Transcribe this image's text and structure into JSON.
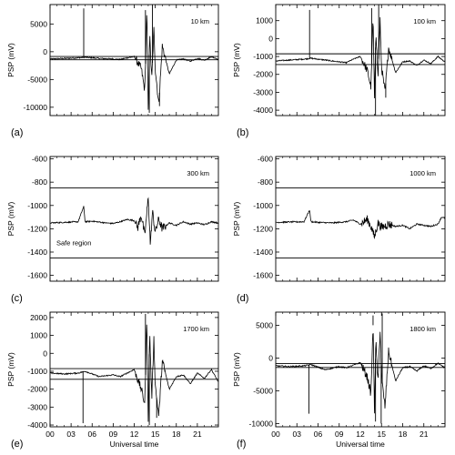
{
  "chart_data": [
    {
      "panel_label": "(a)",
      "annotation": "10 km",
      "type": "line",
      "ylabel": "PSP (mV)",
      "xlabel": "",
      "xlim": [
        0,
        24
      ],
      "ylim": [
        -11500,
        8500
      ],
      "yticks": [
        5000,
        0,
        -5000,
        -10000
      ],
      "yticklabels": [
        "5000",
        "0",
        "-5000",
        "-10000"
      ],
      "xticks": [
        0,
        3,
        6,
        9,
        12,
        15,
        18,
        21
      ],
      "xticklabels": [
        "",
        "",
        "",
        "",
        "",
        "",
        "",
        ""
      ],
      "thresholds": [
        -850,
        -1450
      ],
      "series": [
        {
          "x": [
            0,
            2,
            4,
            5,
            7,
            9,
            10,
            11,
            12,
            13,
            13.5,
            13.8,
            14,
            14.2,
            14.5,
            14.8,
            15,
            15.5,
            16,
            17,
            18,
            19,
            20,
            21,
            22,
            23,
            24
          ],
          "y": [
            -1300,
            -1200,
            -1100,
            -1000,
            -1200,
            -1300,
            -1400,
            -1100,
            -900,
            -3000,
            -7000,
            7500,
            -11000,
            3000,
            -5000,
            4000,
            -3000,
            -9500,
            1000,
            -4000,
            -1500,
            -1300,
            -1700,
            -1200,
            -1500,
            -900,
            -1400
          ]
        }
      ],
      "spikes": [
        {
          "x": 4.8,
          "y": 7800
        },
        {
          "x": 13.6,
          "y": 7500
        },
        {
          "x": 14.15,
          "y": -11000
        },
        {
          "x": 14.6,
          "y": 8500
        },
        {
          "x": 15.6,
          "y": -9800
        }
      ]
    },
    {
      "panel_label": "(b)",
      "annotation": "100 km",
      "type": "line",
      "ylabel": "PSP (mV)",
      "xlabel": "",
      "xlim": [
        0,
        24
      ],
      "ylim": [
        -4300,
        1900
      ],
      "yticks": [
        1000,
        0,
        -1000,
        -2000,
        -3000,
        -4000
      ],
      "yticklabels": [
        "1000",
        "0",
        "-1000",
        "-2000",
        "-3000",
        "-4000"
      ],
      "xticks": [
        0,
        3,
        6,
        9,
        12,
        15,
        18,
        21
      ],
      "xticklabels": [
        "",
        "",
        "",
        "",
        "",
        "",
        "",
        ""
      ],
      "thresholds": [
        -850,
        -1450
      ],
      "series": [
        {
          "x": [
            0,
            2,
            4,
            5,
            7,
            9,
            10,
            11,
            12,
            13,
            13.5,
            13.8,
            14,
            14.2,
            14.5,
            14.8,
            15,
            15.5,
            16,
            17,
            18,
            19,
            20,
            21,
            22,
            23,
            24
          ],
          "y": [
            -1250,
            -1200,
            -1150,
            -1100,
            -1200,
            -1300,
            -1350,
            -1150,
            -1000,
            -1800,
            -2700,
            1200,
            -3500,
            500,
            -2200,
            1000,
            -1600,
            -3000,
            -500,
            -1900,
            -1300,
            -1250,
            -1500,
            -1200,
            -1400,
            -1000,
            -1300
          ]
        }
      ],
      "spikes": [
        {
          "x": 4.8,
          "y": 1600
        },
        {
          "x": 13.6,
          "y": 1700
        },
        {
          "x": 14.15,
          "y": -4300
        },
        {
          "x": 14.6,
          "y": 1900
        },
        {
          "x": 15.6,
          "y": -3300
        }
      ]
    },
    {
      "panel_label": "(c)",
      "annotation": "300 km",
      "type": "line",
      "ylabel": "PSP (mV)",
      "xlabel": "",
      "xlim": [
        0,
        24
      ],
      "ylim": [
        -1650,
        -580
      ],
      "yticks": [
        -600,
        -800,
        -1000,
        -1200,
        -1400,
        -1600
      ],
      "yticklabels": [
        "-600",
        "-800",
        "-1000",
        "-1200",
        "-1400",
        "-1600"
      ],
      "xticks": [
        0,
        3,
        6,
        9,
        12,
        15,
        18,
        21
      ],
      "xticklabels": [
        "",
        "",
        "",
        "",
        "",
        "",
        "",
        ""
      ],
      "thresholds": [
        -850,
        -1450
      ],
      "region_label": "Safe region",
      "series": [
        {
          "x": [
            0,
            2,
            4,
            4.8,
            5,
            6,
            8,
            9,
            10,
            11,
            12,
            12.5,
            13,
            13.5,
            14,
            14.3,
            14.6,
            15,
            15.5,
            16,
            17,
            18,
            19,
            20,
            21,
            22,
            23,
            24
          ],
          "y": [
            -1150,
            -1145,
            -1140,
            -1010,
            -1140,
            -1135,
            -1150,
            -1155,
            -1140,
            -1120,
            -1130,
            -1190,
            -1080,
            -1260,
            -930,
            -1340,
            -1050,
            -1230,
            -1120,
            -1200,
            -1150,
            -1170,
            -1140,
            -1160,
            -1150,
            -1165,
            -1140,
            -1150
          ]
        }
      ]
    },
    {
      "panel_label": "(d)",
      "annotation": "1000 km",
      "type": "line",
      "ylabel": "PSP (mV)",
      "xlabel": "",
      "xlim": [
        0,
        24
      ],
      "ylim": [
        -1650,
        -580
      ],
      "yticks": [
        -600,
        -800,
        -1000,
        -1200,
        -1400,
        -1600
      ],
      "yticklabels": [
        "-600",
        "-800",
        "-1000",
        "-1200",
        "-1400",
        "-1600"
      ],
      "xticks": [
        0,
        3,
        6,
        9,
        12,
        15,
        18,
        21
      ],
      "xticklabels": [
        "",
        "",
        "",
        "",
        "",
        "",
        "",
        ""
      ],
      "thresholds": [
        -850,
        -1450
      ],
      "series": [
        {
          "x": [
            0,
            2,
            4,
            4.8,
            5,
            6,
            8,
            10,
            11,
            12,
            13,
            13.5,
            14,
            14.5,
            15,
            16,
            17,
            18,
            19,
            20,
            21,
            22,
            23,
            23.5,
            24
          ],
          "y": [
            -1145,
            -1142,
            -1140,
            -1040,
            -1140,
            -1145,
            -1150,
            -1140,
            -1125,
            -1160,
            -1120,
            -1180,
            -1270,
            -1150,
            -1190,
            -1160,
            -1180,
            -1170,
            -1200,
            -1160,
            -1170,
            -1180,
            -1160,
            -1100,
            -1110
          ]
        }
      ]
    },
    {
      "panel_label": "(e)",
      "annotation": "1700 km",
      "type": "line",
      "ylabel": "PSP (mV)",
      "xlabel": "Universal time",
      "xlim": [
        0,
        24
      ],
      "ylim": [
        -4100,
        2300
      ],
      "yticks": [
        2000,
        1000,
        0,
        -1000,
        -2000,
        -3000,
        -4000
      ],
      "yticklabels": [
        "2000",
        "1000",
        "0",
        "-1000",
        "-2000",
        "-3000",
        "-4000"
      ],
      "xticks": [
        0,
        3,
        6,
        9,
        12,
        15,
        18,
        21
      ],
      "xticklabels": [
        "00",
        "03",
        "06",
        "09",
        "12",
        "15",
        "18",
        "21"
      ],
      "thresholds": [
        -850,
        -1450
      ],
      "series": [
        {
          "x": [
            0,
            2,
            4,
            5,
            7,
            9,
            10,
            11,
            12,
            13,
            13.5,
            13.8,
            14,
            14.2,
            14.5,
            14.8,
            15,
            15.5,
            16,
            17,
            18,
            19,
            20,
            21,
            22,
            23,
            24
          ],
          "y": [
            -1100,
            -1150,
            -1100,
            -1000,
            -1300,
            -1200,
            -1300,
            -1100,
            -900,
            -2000,
            -2800,
            2000,
            -3800,
            1200,
            -2500,
            800,
            -1800,
            -3500,
            -400,
            -2000,
            -1300,
            -1200,
            -1700,
            -1100,
            -1400,
            -900,
            -1600
          ]
        }
      ],
      "spikes": [
        {
          "x": 4.7,
          "y": -3900
        },
        {
          "x": 13.6,
          "y": 2200
        },
        {
          "x": 14.15,
          "y": -4000
        },
        {
          "x": 15.2,
          "y": -3600
        }
      ]
    },
    {
      "panel_label": "(f)",
      "annotation": "1800 km",
      "type": "line",
      "ylabel": "PSP (mV)",
      "xlabel": "Universal time",
      "xlim": [
        0,
        24
      ],
      "ylim": [
        -10500,
        7000
      ],
      "yticks": [
        5000,
        0,
        -5000,
        -10000
      ],
      "yticklabels": [
        "5000",
        "0",
        "-5000",
        "-10000"
      ],
      "xticks": [
        0,
        3,
        6,
        9,
        12,
        15,
        18,
        21
      ],
      "xticklabels": [
        "00",
        "03",
        "06",
        "09",
        "12",
        "15",
        "18",
        "21"
      ],
      "thresholds": [
        -850,
        -1450
      ],
      "series": [
        {
          "x": [
            0,
            2,
            4,
            5,
            7,
            9,
            10,
            11,
            12,
            13,
            13.5,
            13.8,
            14,
            14.2,
            14.5,
            14.8,
            15,
            15.5,
            16,
            17,
            18,
            19,
            20,
            21,
            22,
            23,
            24
          ],
          "y": [
            -1200,
            -1300,
            -1200,
            -1000,
            -1800,
            -1300,
            -1500,
            -1100,
            -700,
            -3000,
            -5500,
            5000,
            -8000,
            2500,
            -4000,
            4500,
            -3000,
            -7500,
            1000,
            -3500,
            -1500,
            -1300,
            -2000,
            -1200,
            -1600,
            -800,
            -1500
          ]
        }
      ],
      "spikes": [
        {
          "x": 4.7,
          "y": -8500
        },
        {
          "x": 13.8,
          "y": 6500
        },
        {
          "x": 14.15,
          "y": -9700
        },
        {
          "x": 14.95,
          "y": -10000
        },
        {
          "x": 15.1,
          "y": 6800
        }
      ]
    }
  ]
}
